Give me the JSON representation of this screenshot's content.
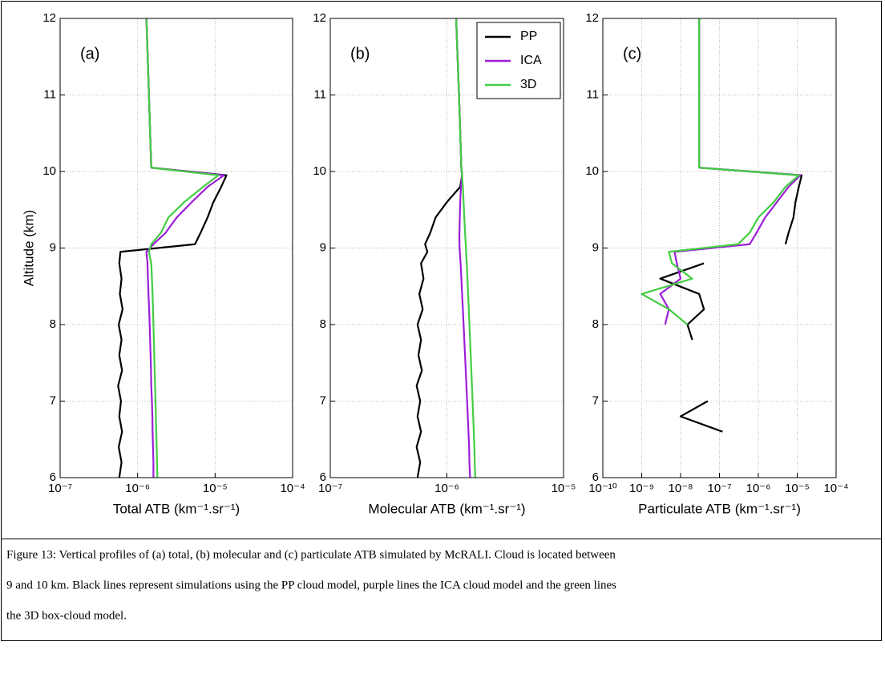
{
  "chart_data": [
    {
      "type": "line",
      "panel_label": "(a)",
      "x_label": "Total ATB (km⁻¹.sr⁻¹)",
      "y_label": "Altitude (km)",
      "xscale": "log",
      "xlim": [
        1e-07,
        0.0001
      ],
      "xticks": [
        {
          "value": 1e-07,
          "label": "10⁻⁷"
        },
        {
          "value": 1e-06,
          "label": "10⁻⁶"
        },
        {
          "value": 1e-05,
          "label": "10⁻⁵"
        },
        {
          "value": 0.0001,
          "label": "10⁻⁴"
        }
      ],
      "ylim": [
        6,
        12
      ],
      "yticks": [
        6,
        7,
        8,
        9,
        10,
        11,
        12
      ],
      "grid": true,
      "y": [
        6.0,
        6.2,
        6.4,
        6.6,
        6.8,
        7.0,
        7.2,
        7.4,
        7.6,
        7.8,
        8.0,
        8.2,
        8.4,
        8.6,
        8.8,
        8.95,
        9.05,
        9.2,
        9.4,
        9.6,
        9.8,
        9.95,
        10.05,
        11.0,
        12.0
      ],
      "series": [
        {
          "name": "PP",
          "color": "#000000",
          "values": [
            5.8e-07,
            6.2e-07,
            5.7e-07,
            6.3e-07,
            5.8e-07,
            6.1e-07,
            5.6e-07,
            6.3e-07,
            5.8e-07,
            6.2e-07,
            5.7e-07,
            6.4e-07,
            5.9e-07,
            6.2e-07,
            5.8e-07,
            6e-07,
            5.5e-06,
            6.5e-06,
            8e-06,
            9.5e-06,
            1.2e-05,
            1.4e-05,
            1.5e-06,
            1.4e-06,
            1.3e-06
          ]
        },
        {
          "name": "ICA",
          "color": "#9b1fd8",
          "values": [
            1.6e-06,
            1.6e-06,
            1.58e-06,
            1.56e-06,
            1.55e-06,
            1.53e-06,
            1.5e-06,
            1.49e-06,
            1.47e-06,
            1.45e-06,
            1.43e-06,
            1.41e-06,
            1.38e-06,
            1.36e-06,
            1.34e-06,
            1.3e-06,
            1.6e-06,
            2.3e-06,
            3.2e-06,
            5e-06,
            8e-06,
            1.3e-05,
            1.5e-06,
            1.4e-06,
            1.3e-06
          ]
        },
        {
          "name": "3D",
          "color": "#44cc44",
          "values": [
            1.8e-06,
            1.78e-06,
            1.76e-06,
            1.74e-06,
            1.72e-06,
            1.7e-06,
            1.68e-06,
            1.66e-06,
            1.64e-06,
            1.62e-06,
            1.6e-06,
            1.58e-06,
            1.56e-06,
            1.53e-06,
            1.5e-06,
            1.4e-06,
            1.5e-06,
            2e-06,
            2.5e-06,
            4e-06,
            7e-06,
            1.1e-05,
            1.5e-06,
            1.4e-06,
            1.3e-06
          ]
        }
      ]
    },
    {
      "type": "line",
      "panel_label": "(b)",
      "x_label": "Molecular ATB (km⁻¹.sr⁻¹)",
      "xscale": "log",
      "xlim": [
        1e-07,
        1e-05
      ],
      "xticks": [
        {
          "value": 1e-07,
          "label": "10⁻⁷"
        },
        {
          "value": 1e-06,
          "label": "10⁻⁶"
        },
        {
          "value": 1e-05,
          "label": "10⁻⁵"
        }
      ],
      "ylim": [
        6,
        12
      ],
      "yticks": [
        6,
        7,
        8,
        9,
        10,
        11,
        12
      ],
      "grid": true,
      "legend": "upper right",
      "y": [
        6.0,
        6.2,
        6.4,
        6.6,
        6.8,
        7.0,
        7.2,
        7.4,
        7.6,
        7.8,
        8.0,
        8.2,
        8.4,
        8.6,
        8.8,
        8.95,
        9.05,
        9.2,
        9.4,
        9.6,
        9.8,
        9.95,
        10.05,
        11.0,
        12.0
      ],
      "series": [
        {
          "name": "PP",
          "color": "#000000",
          "values": [
            5.6e-07,
            5.9e-07,
            5.5e-07,
            6e-07,
            5.6e-07,
            5.9e-07,
            5.5e-07,
            6.1e-07,
            5.7e-07,
            6e-07,
            5.6e-07,
            6.2e-07,
            5.8e-07,
            6.3e-07,
            6e-07,
            6.8e-07,
            6.5e-07,
            7.2e-07,
            8e-07,
            1e-06,
            1.3e-06,
            1.35e-06,
            1.33e-06,
            1.27e-06,
            1.2e-06
          ]
        },
        {
          "name": "ICA",
          "color": "#9b1fd8",
          "values": [
            1.58e-06,
            1.56e-06,
            1.55e-06,
            1.53e-06,
            1.51e-06,
            1.49e-06,
            1.47e-06,
            1.45e-06,
            1.43e-06,
            1.41e-06,
            1.39e-06,
            1.37e-06,
            1.35e-06,
            1.33e-06,
            1.31e-06,
            1.29e-06,
            1.28e-06,
            1.28e-06,
            1.29e-06,
            1.3e-06,
            1.32e-06,
            1.35e-06,
            1.33e-06,
            1.27e-06,
            1.2e-06
          ]
        },
        {
          "name": "3D",
          "color": "#44cc44",
          "values": [
            1.75e-06,
            1.73e-06,
            1.72e-06,
            1.7e-06,
            1.68e-06,
            1.66e-06,
            1.64e-06,
            1.62e-06,
            1.6e-06,
            1.58e-06,
            1.56e-06,
            1.54e-06,
            1.52e-06,
            1.5e-06,
            1.48e-06,
            1.46e-06,
            1.45e-06,
            1.43e-06,
            1.41e-06,
            1.39e-06,
            1.37e-06,
            1.35e-06,
            1.33e-06,
            1.27e-06,
            1.2e-06
          ]
        }
      ]
    },
    {
      "type": "line",
      "panel_label": "(c)",
      "x_label": "Particulate ATB (km⁻¹.sr⁻¹)",
      "xscale": "log",
      "xlim": [
        1e-10,
        0.0001
      ],
      "xticks": [
        {
          "value": 1e-10,
          "label": "10⁻¹⁰"
        },
        {
          "value": 1e-09,
          "label": "10⁻⁹"
        },
        {
          "value": 1e-08,
          "label": "10⁻⁸"
        },
        {
          "value": 1e-07,
          "label": "10⁻⁷"
        },
        {
          "value": 1e-06,
          "label": "10⁻⁶"
        },
        {
          "value": 1e-05,
          "label": "10⁻⁵"
        },
        {
          "value": 0.0001,
          "label": "10⁻⁴"
        }
      ],
      "ylim": [
        6,
        12
      ],
      "yticks": [
        6,
        7,
        8,
        9,
        10,
        11,
        12
      ],
      "grid": true,
      "y": [
        6.0,
        6.2,
        6.4,
        6.6,
        6.8,
        7.0,
        7.2,
        7.4,
        7.6,
        7.8,
        8.0,
        8.2,
        8.4,
        8.6,
        8.8,
        8.95,
        9.05,
        9.2,
        9.4,
        9.6,
        9.8,
        9.95,
        10.05,
        11.0,
        12.0
      ],
      "series": [
        {
          "name": "PP",
          "color": "#000000",
          "values": [
            null,
            null,
            null,
            1.2e-07,
            1e-08,
            5e-08,
            null,
            null,
            null,
            2e-08,
            1.5e-08,
            4e-08,
            3e-08,
            3e-09,
            4e-08,
            null,
            5e-06,
            6e-06,
            8e-06,
            9e-06,
            1.1e-05,
            1.3e-05,
            3e-08,
            3e-08,
            3e-08
          ]
        },
        {
          "name": "ICA",
          "color": "#9b1fd8",
          "values": [
            null,
            null,
            null,
            null,
            null,
            null,
            null,
            null,
            null,
            null,
            4e-09,
            5e-09,
            3e-09,
            1e-08,
            8e-09,
            7e-09,
            6e-07,
            9e-07,
            1.5e-06,
            3e-06,
            6e-06,
            1.2e-05,
            3e-08,
            3e-08,
            3e-08
          ]
        },
        {
          "name": "3D",
          "color": "#44cc44",
          "values": [
            null,
            null,
            null,
            null,
            null,
            null,
            null,
            null,
            null,
            null,
            1.5e-08,
            5e-09,
            1e-09,
            2e-08,
            6e-09,
            5e-09,
            3e-07,
            6e-07,
            1e-06,
            2.5e-06,
            5e-06,
            1.1e-05,
            3e-08,
            3e-08,
            3e-08
          ]
        }
      ]
    }
  ],
  "caption": [
    "Figure 13: Vertical profiles of (a) total, (b) molecular and (c) particulate ATB simulated by McRALI. Cloud is located between",
    "9 and 10 km. Black lines represent simulations using the PP cloud model, purple lines the ICA cloud model and the green lines",
    "the 3D box-cloud model."
  ]
}
